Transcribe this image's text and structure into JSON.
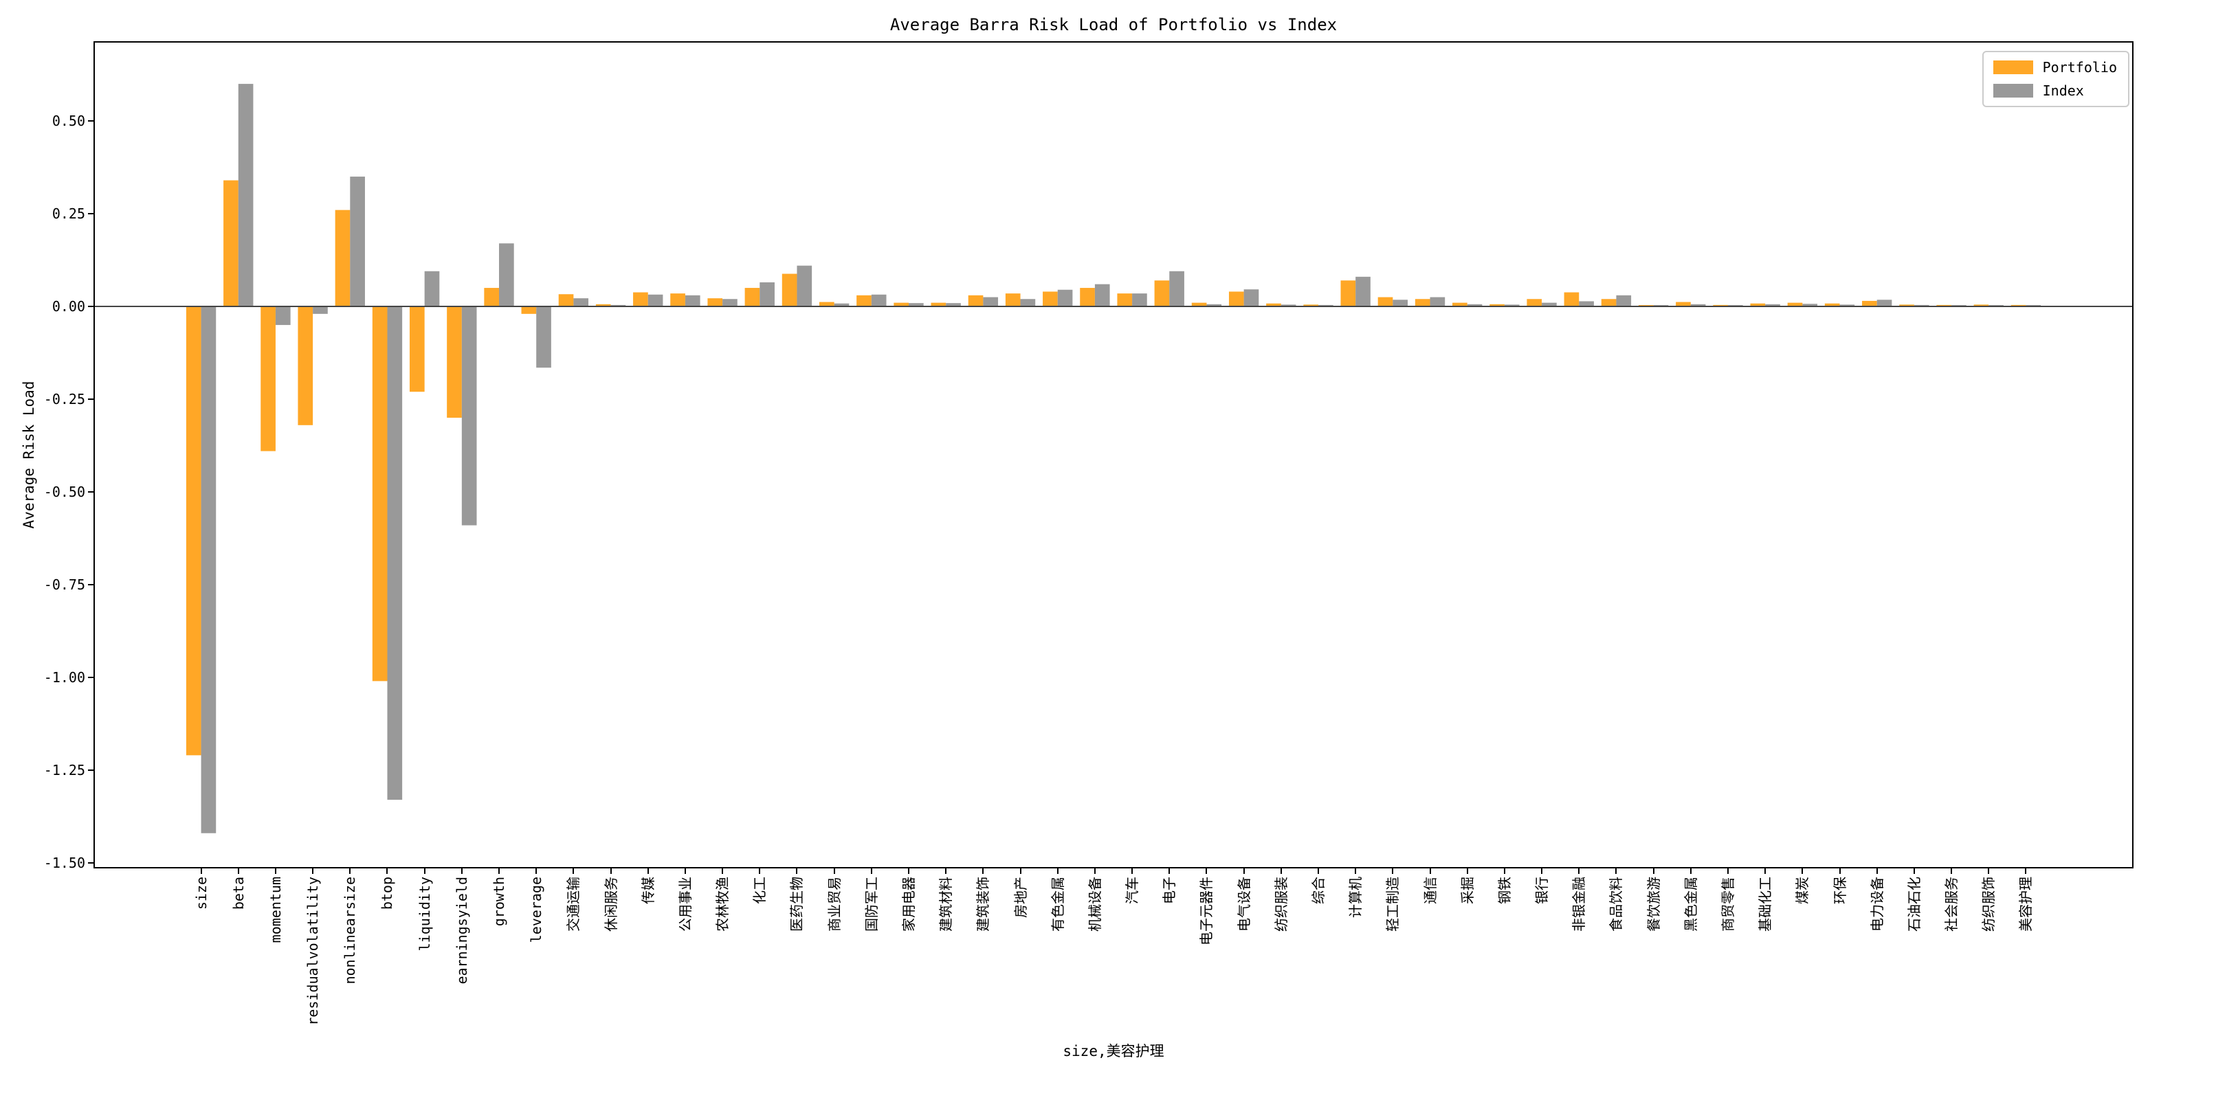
{
  "figure": {
    "background": "#ffffff"
  },
  "chart_data": {
    "type": "bar",
    "title": "Average Barra Risk Load of Portfolio vs Index",
    "xlabel": "size,美容护理",
    "ylabel": "Average Risk Load",
    "grid": false,
    "legend_position": "upper right",
    "ylim": [
      -1.515,
      0.715
    ],
    "yticks": [
      0.5,
      0.25,
      0.0,
      -0.25,
      -0.5,
      -0.75,
      -1.0,
      -1.25,
      -1.5
    ],
    "ytick_labels": [
      "0.50",
      "0.25",
      "0.00",
      "-0.25",
      "-0.50",
      "-0.75",
      "-1.00",
      "-1.25",
      "-1.50"
    ],
    "categories": [
      "size",
      "beta",
      "momentum",
      "residualvolatility",
      "nonlinearsize",
      "btop",
      "liquidity",
      "earningsyield",
      "growth",
      "leverage",
      "交通运输",
      "休闲服务",
      "传媒",
      "公用事业",
      "农林牧渔",
      "化工",
      "医药生物",
      "商业贸易",
      "国防军工",
      "家用电器",
      "建筑材料",
      "建筑装饰",
      "房地产",
      "有色金属",
      "机械设备",
      "汽车",
      "电子",
      "电子元器件",
      "电气设备",
      "纺织服装",
      "综合",
      "计算机",
      "轻工制造",
      "通信",
      "采掘",
      "钢铁",
      "银行",
      "非银金融",
      "食品饮料",
      "餐饮旅游",
      "黑色金属",
      "商贸零售",
      "基础化工",
      "煤炭",
      "环保",
      "电力设备",
      "石油石化",
      "社会服务",
      "纺织服饰",
      "美容护理"
    ],
    "series": [
      {
        "name": "Portfolio",
        "color": "#FFA726",
        "values": [
          -1.21,
          0.34,
          -0.39,
          -0.32,
          0.26,
          -1.01,
          -0.23,
          -0.3,
          0.05,
          -0.02,
          0.033,
          0.006,
          0.038,
          0.035,
          0.022,
          0.05,
          0.088,
          0.012,
          0.03,
          0.01,
          0.01,
          0.03,
          0.035,
          0.04,
          0.05,
          0.035,
          0.07,
          0.01,
          0.04,
          0.008,
          0.005,
          0.07,
          0.025,
          0.02,
          0.01,
          0.006,
          0.02,
          0.038,
          0.02,
          0.003,
          0.012,
          0.004,
          0.008,
          0.01,
          0.008,
          0.015,
          0.005,
          0.004,
          0.005,
          0.004
        ]
      },
      {
        "name": "Index",
        "color": "#999999",
        "values": [
          -1.42,
          0.6,
          -0.05,
          -0.02,
          0.35,
          -1.33,
          0.095,
          -0.59,
          0.17,
          -0.165,
          0.022,
          0.004,
          0.032,
          0.03,
          0.02,
          0.065,
          0.11,
          0.008,
          0.032,
          0.009,
          0.009,
          0.025,
          0.02,
          0.045,
          0.06,
          0.035,
          0.095,
          0.006,
          0.046,
          0.005,
          0.004,
          0.08,
          0.018,
          0.025,
          0.006,
          0.005,
          0.01,
          0.014,
          0.03,
          0.002,
          0.006,
          0.003,
          0.006,
          0.007,
          0.005,
          0.018,
          0.004,
          0.003,
          0.003,
          0.002
        ]
      }
    ]
  }
}
